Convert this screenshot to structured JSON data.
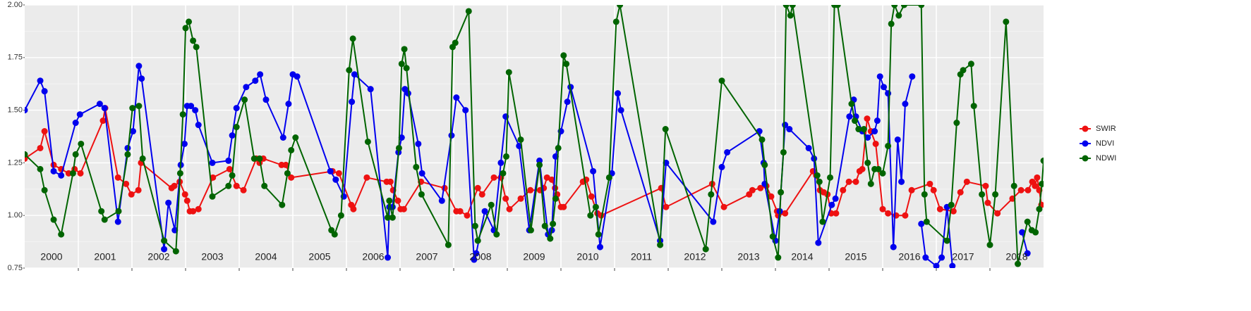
{
  "chart_data": {
    "type": "line",
    "xlim": [
      2000,
      2019
    ],
    "ylim": [
      0.75,
      2.0
    ],
    "yticks": [
      {
        "value": 0.75,
        "label": "0.75"
      },
      {
        "value": 1,
        "label": "1.00"
      },
      {
        "value": 1.25,
        "label": "1.25"
      },
      {
        "value": 1.5,
        "label": "1.50"
      },
      {
        "value": 1.75,
        "label": "1.75"
      },
      {
        "value": 2,
        "label": "2.00"
      }
    ],
    "yminor": [
      0.875,
      1.125,
      1.375,
      1.625,
      1.875
    ],
    "xgrid": [
      2001,
      2002,
      2003,
      2004,
      2005,
      2006,
      2007,
      2008,
      2009,
      2010,
      2011,
      2012,
      2013,
      2014,
      2015,
      2016,
      2017,
      2018
    ],
    "xticks": [
      {
        "value": 2000.5,
        "label": "2000"
      },
      {
        "value": 2001.5,
        "label": "2001"
      },
      {
        "value": 2002.5,
        "label": "2002"
      },
      {
        "value": 2003.5,
        "label": "2003"
      },
      {
        "value": 2004.5,
        "label": "2004"
      },
      {
        "value": 2005.5,
        "label": "2005"
      },
      {
        "value": 2006.5,
        "label": "2006"
      },
      {
        "value": 2007.5,
        "label": "2007"
      },
      {
        "value": 2008.5,
        "label": "2008"
      },
      {
        "value": 2009.5,
        "label": "2009"
      },
      {
        "value": 2010.5,
        "label": "2010"
      },
      {
        "value": 2011.5,
        "label": "2011"
      },
      {
        "value": 2012.5,
        "label": "2012"
      },
      {
        "value": 2013.5,
        "label": "2013"
      },
      {
        "value": 2014.5,
        "label": "2014"
      },
      {
        "value": 2015.5,
        "label": "2015"
      },
      {
        "value": 2016.5,
        "label": "2016"
      },
      {
        "value": 2017.5,
        "label": "2017"
      },
      {
        "value": 2018.5,
        "label": "2018"
      }
    ],
    "grid": true,
    "legend": "right",
    "series": [
      {
        "name": "SWIR",
        "color": "#ee1111",
        "x": [
          2000.0,
          2000.29,
          2000.37,
          2000.54,
          2000.68,
          2000.82,
          2000.93,
          2001.04,
          2001.46,
          2001.5,
          2001.74,
          2001.89,
          2001.99,
          2002.12,
          2002.17,
          2002.74,
          2002.79,
          2002.89,
          2002.99,
          2003.03,
          2003.08,
          2003.14,
          2003.24,
          2003.51,
          2003.82,
          2003.95,
          2004.08,
          2004.32,
          2004.38,
          2004.45,
          2004.79,
          2004.87,
          2004.97,
          2005.74,
          2005.86,
          2006.09,
          2006.13,
          2006.38,
          2006.75,
          2006.82,
          2006.87,
          2006.96,
          2007.01,
          2007.07,
          2007.39,
          2007.83,
          2008.05,
          2008.12,
          2008.25,
          2008.45,
          2008.53,
          2008.75,
          2008.88,
          2008.97,
          2009.04,
          2009.25,
          2009.43,
          2009.61,
          2009.68,
          2009.74,
          2009.83,
          2009.89,
          2009.93,
          2010.0,
          2010.05,
          2010.41,
          2010.47,
          2010.57,
          2010.68,
          2010.75,
          2011.87,
          2011.96,
          2012.82,
          2013.04,
          2013.51,
          2013.57,
          2013.72,
          2013.83,
          2013.92,
          2014.03,
          2014.05,
          2014.18,
          2014.7,
          2014.76,
          2014.83,
          2014.9,
          2014.97,
          2015.04,
          2015.13,
          2015.26,
          2015.37,
          2015.5,
          2015.57,
          2015.62,
          2015.71,
          2015.78,
          2015.87,
          2016.0,
          2016.1,
          2016.25,
          2016.42,
          2016.54,
          2016.88,
          2016.95,
          2017.07,
          2017.32,
          2017.45,
          2017.57,
          2017.92,
          2017.96,
          2018.14,
          2018.42,
          2018.58,
          2018.71,
          2018.79,
          2018.84,
          2018.88,
          2018.92,
          2018.96
        ],
        "values": [
          1.27,
          1.32,
          1.4,
          1.24,
          1.22,
          1.2,
          1.22,
          1.2,
          1.45,
          1.51,
          1.18,
          1.15,
          1.1,
          1.12,
          1.25,
          1.13,
          1.14,
          1.16,
          1.1,
          1.07,
          1.02,
          1.02,
          1.03,
          1.18,
          1.22,
          1.14,
          1.12,
          1.27,
          1.25,
          1.27,
          1.24,
          1.24,
          1.18,
          1.21,
          1.2,
          1.05,
          1.03,
          1.18,
          1.16,
          1.16,
          1.12,
          1.07,
          1.03,
          1.03,
          1.16,
          1.13,
          1.02,
          1.02,
          1.0,
          1.13,
          1.1,
          1.18,
          1.18,
          1.08,
          1.03,
          1.08,
          1.12,
          1.12,
          1.13,
          1.18,
          1.17,
          1.13,
          1.1,
          1.04,
          1.04,
          1.16,
          1.17,
          1.09,
          1.01,
          1.0,
          1.13,
          1.04,
          1.15,
          1.04,
          1.1,
          1.12,
          1.13,
          1.14,
          1.09,
          1.02,
          1.0,
          1.01,
          1.21,
          1.19,
          1.12,
          1.11,
          1.1,
          1.01,
          1.01,
          1.12,
          1.16,
          1.16,
          1.21,
          1.22,
          1.46,
          1.4,
          1.34,
          1.03,
          1.01,
          1.0,
          1.0,
          1.12,
          1.15,
          1.12,
          1.03,
          1.02,
          1.11,
          1.16,
          1.14,
          1.06,
          1.01,
          1.08,
          1.12,
          1.12,
          1.16,
          1.14,
          1.18,
          1.12,
          1.05
        ]
      },
      {
        "name": "NDVI",
        "color": "#0000ee",
        "x": [
          2000.0,
          2000.29,
          2000.37,
          2000.54,
          2000.68,
          2000.95,
          2001.03,
          2001.4,
          2001.49,
          2001.74,
          2001.92,
          2002.02,
          2002.13,
          2002.18,
          2002.6,
          2002.68,
          2002.8,
          2002.91,
          2002.98,
          2003.03,
          2003.1,
          2003.18,
          2003.24,
          2003.5,
          2003.8,
          2003.87,
          2003.95,
          2004.13,
          2004.3,
          2004.39,
          2004.5,
          2004.82,
          2004.92,
          2005.0,
          2005.08,
          2005.7,
          2005.8,
          2005.95,
          2006.1,
          2006.15,
          2006.45,
          2006.77,
          2006.8,
          2006.86,
          2006.97,
          2007.03,
          2007.09,
          2007.15,
          2007.34,
          2007.41,
          2007.78,
          2007.96,
          2008.05,
          2008.22,
          2008.38,
          2008.42,
          2008.58,
          2008.75,
          2008.88,
          2008.97,
          2009.22,
          2009.41,
          2009.6,
          2009.76,
          2009.83,
          2009.9,
          2010.0,
          2010.12,
          2010.18,
          2010.6,
          2010.73,
          2010.95,
          2011.06,
          2011.12,
          2011.85,
          2011.96,
          2012.84,
          2013.0,
          2013.1,
          2013.7,
          2013.78,
          2013.8,
          2014.0,
          2014.08,
          2014.18,
          2014.26,
          2014.62,
          2014.72,
          2014.8,
          2015.05,
          2015.12,
          2015.38,
          2015.46,
          2015.5,
          2015.62,
          2015.72,
          2015.85,
          2015.9,
          2015.95,
          2016.02,
          2016.1,
          2016.2,
          2016.28,
          2016.35,
          2016.42,
          2016.55,
          2016.62,
          2016.72,
          2016.8,
          2017.0,
          2017.1,
          2017.2,
          2017.3,
          2017.5,
          2018.6,
          2018.7
        ],
        "values": [
          1.5,
          1.64,
          1.59,
          1.21,
          1.19,
          1.44,
          1.48,
          1.53,
          1.51,
          0.97,
          1.32,
          1.4,
          1.71,
          1.65,
          0.84,
          1.06,
          0.93,
          1.24,
          1.34,
          1.52,
          1.52,
          1.5,
          1.43,
          1.25,
          1.26,
          1.38,
          1.51,
          1.61,
          1.64,
          1.67,
          1.55,
          1.37,
          1.53,
          1.67,
          1.66,
          1.21,
          1.17,
          1.09,
          1.54,
          1.67,
          1.6,
          0.8,
          1.04,
          1.04,
          1.3,
          1.37,
          1.6,
          1.58,
          1.34,
          1.2,
          1.07,
          1.38,
          1.56,
          1.5,
          0.79,
          0.82,
          1.02,
          0.93,
          1.25,
          1.47,
          1.33,
          0.93,
          1.26,
          0.91,
          0.93,
          1.28,
          1.4,
          1.54,
          1.61,
          1.21,
          0.85,
          1.2,
          1.58,
          1.5,
          0.88,
          1.25,
          0.97,
          1.23,
          1.3,
          1.4,
          1.25,
          1.15,
          0.88,
          1.02,
          1.43,
          1.41,
          1.32,
          1.27,
          0.87,
          1.05,
          1.08,
          1.47,
          1.55,
          1.47,
          1.4,
          1.37,
          1.4,
          1.45,
          1.66,
          1.61,
          1.58,
          0.85,
          1.36,
          1.16,
          1.53,
          1.66,
          null,
          0.96,
          0.8,
          0.76,
          0.8,
          1.04,
          0.76,
          null,
          0.92,
          0.82
        ]
      },
      {
        "name": "NDWI",
        "color": "#006400",
        "x": [
          2000.0,
          2000.29,
          2000.37,
          2000.54,
          2000.68,
          2000.9,
          2000.95,
          2001.05,
          2001.43,
          2001.49,
          2001.75,
          2001.92,
          2002.01,
          2002.13,
          2002.2,
          2002.6,
          2002.82,
          2002.9,
          2002.95,
          2003.0,
          2003.06,
          2003.14,
          2003.2,
          2003.5,
          2003.8,
          2003.87,
          2003.95,
          2004.1,
          2004.28,
          2004.38,
          2004.47,
          2004.8,
          2004.9,
          2004.97,
          2005.05,
          2005.72,
          2005.78,
          2005.9,
          2006.05,
          2006.12,
          2006.4,
          2006.77,
          2006.8,
          2006.86,
          2006.98,
          2007.03,
          2007.08,
          2007.12,
          2007.3,
          2007.4,
          2007.9,
          2007.98,
          2008.03,
          2008.28,
          2008.4,
          2008.45,
          2008.7,
          2008.8,
          2008.92,
          2008.98,
          2009.03,
          2009.25,
          2009.44,
          2009.6,
          2009.7,
          2009.8,
          2009.85,
          2009.9,
          2009.95,
          2010.05,
          2010.1,
          2010.55,
          2010.65,
          2010.7,
          2010.9,
          2011.03,
          2011.1,
          2011.85,
          2011.95,
          2012.7,
          2012.8,
          2013.0,
          2013.75,
          2013.8,
          2013.95,
          2014.05,
          2014.1,
          2014.15,
          2014.2,
          2014.28,
          2014.32,
          2014.78,
          2014.82,
          2014.88,
          2015.02,
          2015.1,
          2015.16,
          2015.42,
          2015.48,
          2015.55,
          2015.65,
          2015.72,
          2015.78,
          2015.85,
          2015.92,
          2016.0,
          2016.1,
          2016.16,
          2016.22,
          2016.3,
          2016.4,
          2016.72,
          2016.78,
          2016.82,
          2017.2,
          2017.28,
          2017.38,
          2017.45,
          2017.5,
          2017.65,
          2017.7,
          2017.85,
          2018.0,
          2018.1,
          2018.3,
          2018.45,
          2018.52,
          2018.7,
          2018.78,
          2018.85,
          2018.92,
          2018.97,
          2019.0
        ],
        "values": [
          1.29,
          1.22,
          1.12,
          0.98,
          0.91,
          1.2,
          1.29,
          1.34,
          1.02,
          0.98,
          1.02,
          1.29,
          1.51,
          1.52,
          1.27,
          0.88,
          0.83,
          1.2,
          1.48,
          1.89,
          1.92,
          1.83,
          1.8,
          1.09,
          1.14,
          1.19,
          1.42,
          1.55,
          1.27,
          1.27,
          1.14,
          1.05,
          1.2,
          1.31,
          1.37,
          0.93,
          0.91,
          1.0,
          1.69,
          1.84,
          1.35,
          0.99,
          1.07,
          0.99,
          1.32,
          1.72,
          1.79,
          1.7,
          1.23,
          1.1,
          0.86,
          1.8,
          1.82,
          1.97,
          0.95,
          0.88,
          1.05,
          0.91,
          1.2,
          1.28,
          1.68,
          1.36,
          0.93,
          1.24,
          0.95,
          0.89,
          0.96,
          1.08,
          1.32,
          1.76,
          1.72,
          1.0,
          1.04,
          0.91,
          1.18,
          1.92,
          2.0,
          0.86,
          1.41,
          0.84,
          1.1,
          1.64,
          1.36,
          1.24,
          0.9,
          0.8,
          1.11,
          1.3,
          2.0,
          1.95,
          2.0,
          1.19,
          1.16,
          0.97,
          1.18,
          2.0,
          2.0,
          1.53,
          1.45,
          1.41,
          1.41,
          1.25,
          1.15,
          1.22,
          1.22,
          1.2,
          1.33,
          1.91,
          2.0,
          1.95,
          2.0,
          2.0,
          1.1,
          0.97,
          0.88,
          1.05,
          1.44,
          1.67,
          1.69,
          1.72,
          1.52,
          1.1,
          0.86,
          1.1,
          1.92,
          1.14,
          0.77,
          0.97,
          0.93,
          0.92,
          1.03,
          1.15,
          1.26
        ]
      }
    ]
  }
}
